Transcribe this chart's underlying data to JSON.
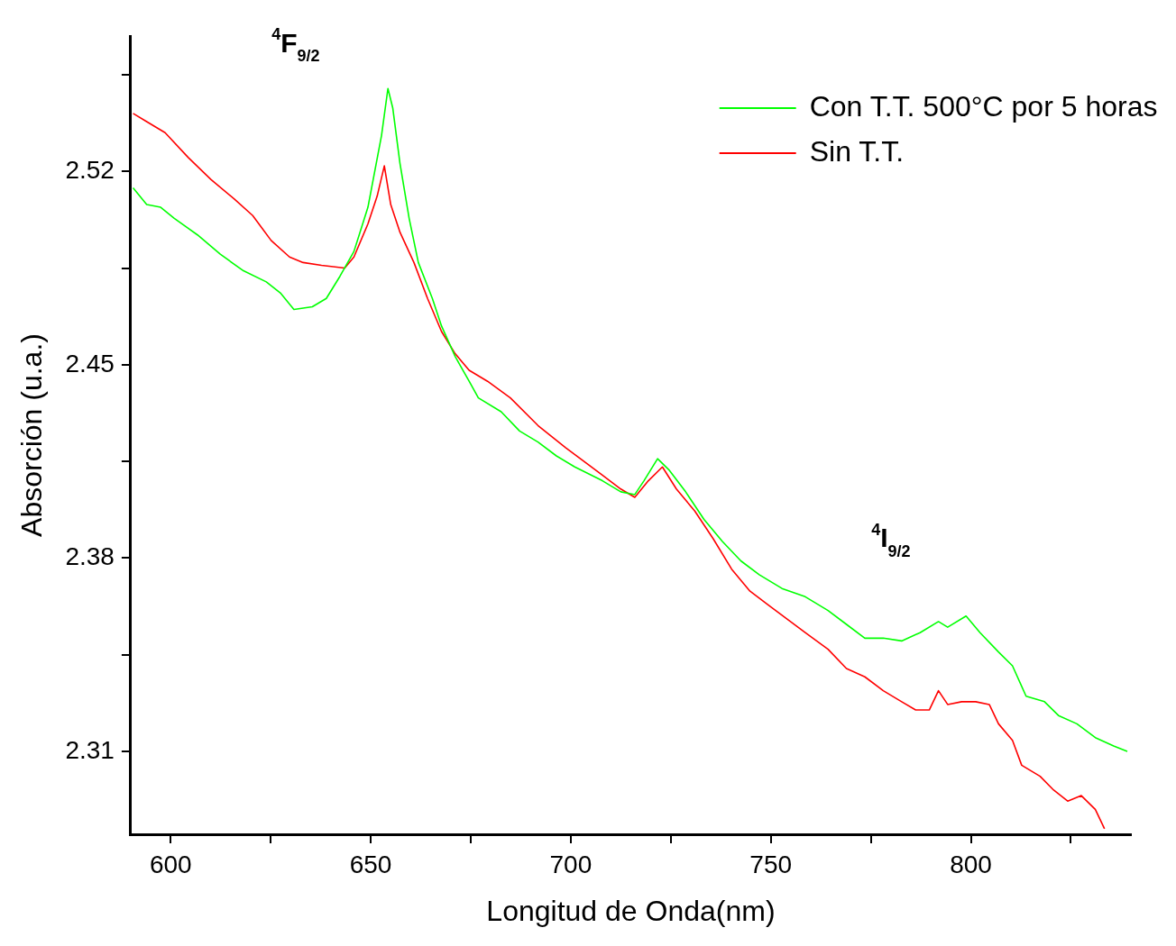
{
  "chart_data": {
    "type": "line",
    "xlabel": "Longitud de Onda(nm)",
    "ylabel": "Absorción (u.a.)",
    "xlim": [
      590,
      840
    ],
    "ylim": [
      2.28,
      2.569
    ],
    "xticks": [
      600,
      {
        "value": 625,
        "label": null
      },
      650,
      {
        "value": 675,
        "label": null
      },
      700,
      {
        "value": 725,
        "label": null
      },
      750,
      {
        "value": 775,
        "label": null
      },
      800,
      {
        "value": 825,
        "label": null
      }
    ],
    "yticks": [
      2.31,
      {
        "value": 2.345,
        "label": null
      },
      2.38,
      {
        "value": 2.415,
        "label": null
      },
      2.45,
      {
        "value": 2.485,
        "label": null
      },
      2.52,
      {
        "value": 2.555,
        "label": null
      }
    ],
    "grid": false,
    "legend": "top right",
    "marker": "none",
    "line_style": "solid",
    "annotations": [
      "$^{4}$F$_{9/2}$",
      "$^{4}$I$_{9/2}$"
    ],
    "series": [
      {
        "name": "Con T.T. 500°C por 5 horas",
        "color": "#00ff00",
        "x": [
          590.6,
          594.0,
          597.5,
          600.9,
          606.7,
          612.4,
          618.2,
          623.9,
          627.4,
          630.8,
          635.4,
          638.9,
          642.3,
          645.8,
          649.3,
          652.7,
          654.3,
          655.5,
          657.3,
          659.6,
          661.9,
          665.4,
          667.7,
          671.1,
          674.6,
          676.9,
          682.6,
          687.2,
          691.8,
          696.4,
          701.0,
          707.9,
          712.5,
          716.0,
          718.3,
          721.7,
          724.5,
          728.7,
          733.3,
          737.9,
          742.5,
          747.1,
          752.8,
          758.6,
          764.3,
          768.9,
          773.5,
          778.1,
          782.7,
          787.3,
          791.9,
          794.2,
          798.8,
          802.3,
          806.9,
          810.4,
          813.8,
          818.4,
          821.9,
          826.5,
          831.1,
          835.7,
          839.1
        ],
        "values": [
          2.514,
          2.508,
          2.507,
          2.503,
          2.497,
          2.49,
          2.484,
          2.48,
          2.476,
          2.47,
          2.471,
          2.474,
          2.482,
          2.491,
          2.507,
          2.533,
          2.55,
          2.543,
          2.523,
          2.503,
          2.487,
          2.474,
          2.464,
          2.453,
          2.444,
          2.438,
          2.433,
          2.426,
          2.422,
          2.417,
          2.413,
          2.408,
          2.404,
          2.403,
          2.408,
          2.416,
          2.412,
          2.404,
          2.394,
          2.386,
          2.379,
          2.374,
          2.369,
          2.366,
          2.361,
          2.356,
          2.351,
          2.351,
          2.35,
          2.353,
          2.357,
          2.355,
          2.359,
          2.353,
          2.346,
          2.341,
          2.33,
          2.328,
          2.323,
          2.32,
          2.315,
          2.312,
          2.31
        ]
      },
      {
        "name": "Sin T.T.",
        "color": "#ff0000",
        "x": [
          590.6,
          594.0,
          598.6,
          604.4,
          610.1,
          615.9,
          620.5,
          625.1,
          629.7,
          633.1,
          637.7,
          643.5,
          645.8,
          649.3,
          651.6,
          653.4,
          655.0,
          657.3,
          660.8,
          664.2,
          667.7,
          671.1,
          674.6,
          679.2,
          684.9,
          691.8,
          698.7,
          707.9,
          712.5,
          716.0,
          719.4,
          722.9,
          726.4,
          731.0,
          735.6,
          740.2,
          744.8,
          749.4,
          754.0,
          758.6,
          764.3,
          768.9,
          773.5,
          778.1,
          782.7,
          786.2,
          789.6,
          791.9,
          794.2,
          797.7,
          801.2,
          804.6,
          806.9,
          810.4,
          812.7,
          817.3,
          820.7,
          824.2,
          827.6,
          831.1,
          833.4
        ],
        "values": [
          2.541,
          2.538,
          2.534,
          2.525,
          2.517,
          2.51,
          2.504,
          2.495,
          2.489,
          2.487,
          2.486,
          2.485,
          2.489,
          2.501,
          2.511,
          2.522,
          2.508,
          2.498,
          2.487,
          2.474,
          2.462,
          2.454,
          2.448,
          2.444,
          2.438,
          2.428,
          2.42,
          2.41,
          2.405,
          2.402,
          2.408,
          2.413,
          2.405,
          2.397,
          2.387,
          2.376,
          2.368,
          2.363,
          2.358,
          2.353,
          2.347,
          2.34,
          2.337,
          2.332,
          2.328,
          2.325,
          2.325,
          2.332,
          2.327,
          2.328,
          2.328,
          2.327,
          2.32,
          2.314,
          2.305,
          2.301,
          2.296,
          2.292,
          2.294,
          2.289,
          2.282
        ]
      }
    ]
  }
}
